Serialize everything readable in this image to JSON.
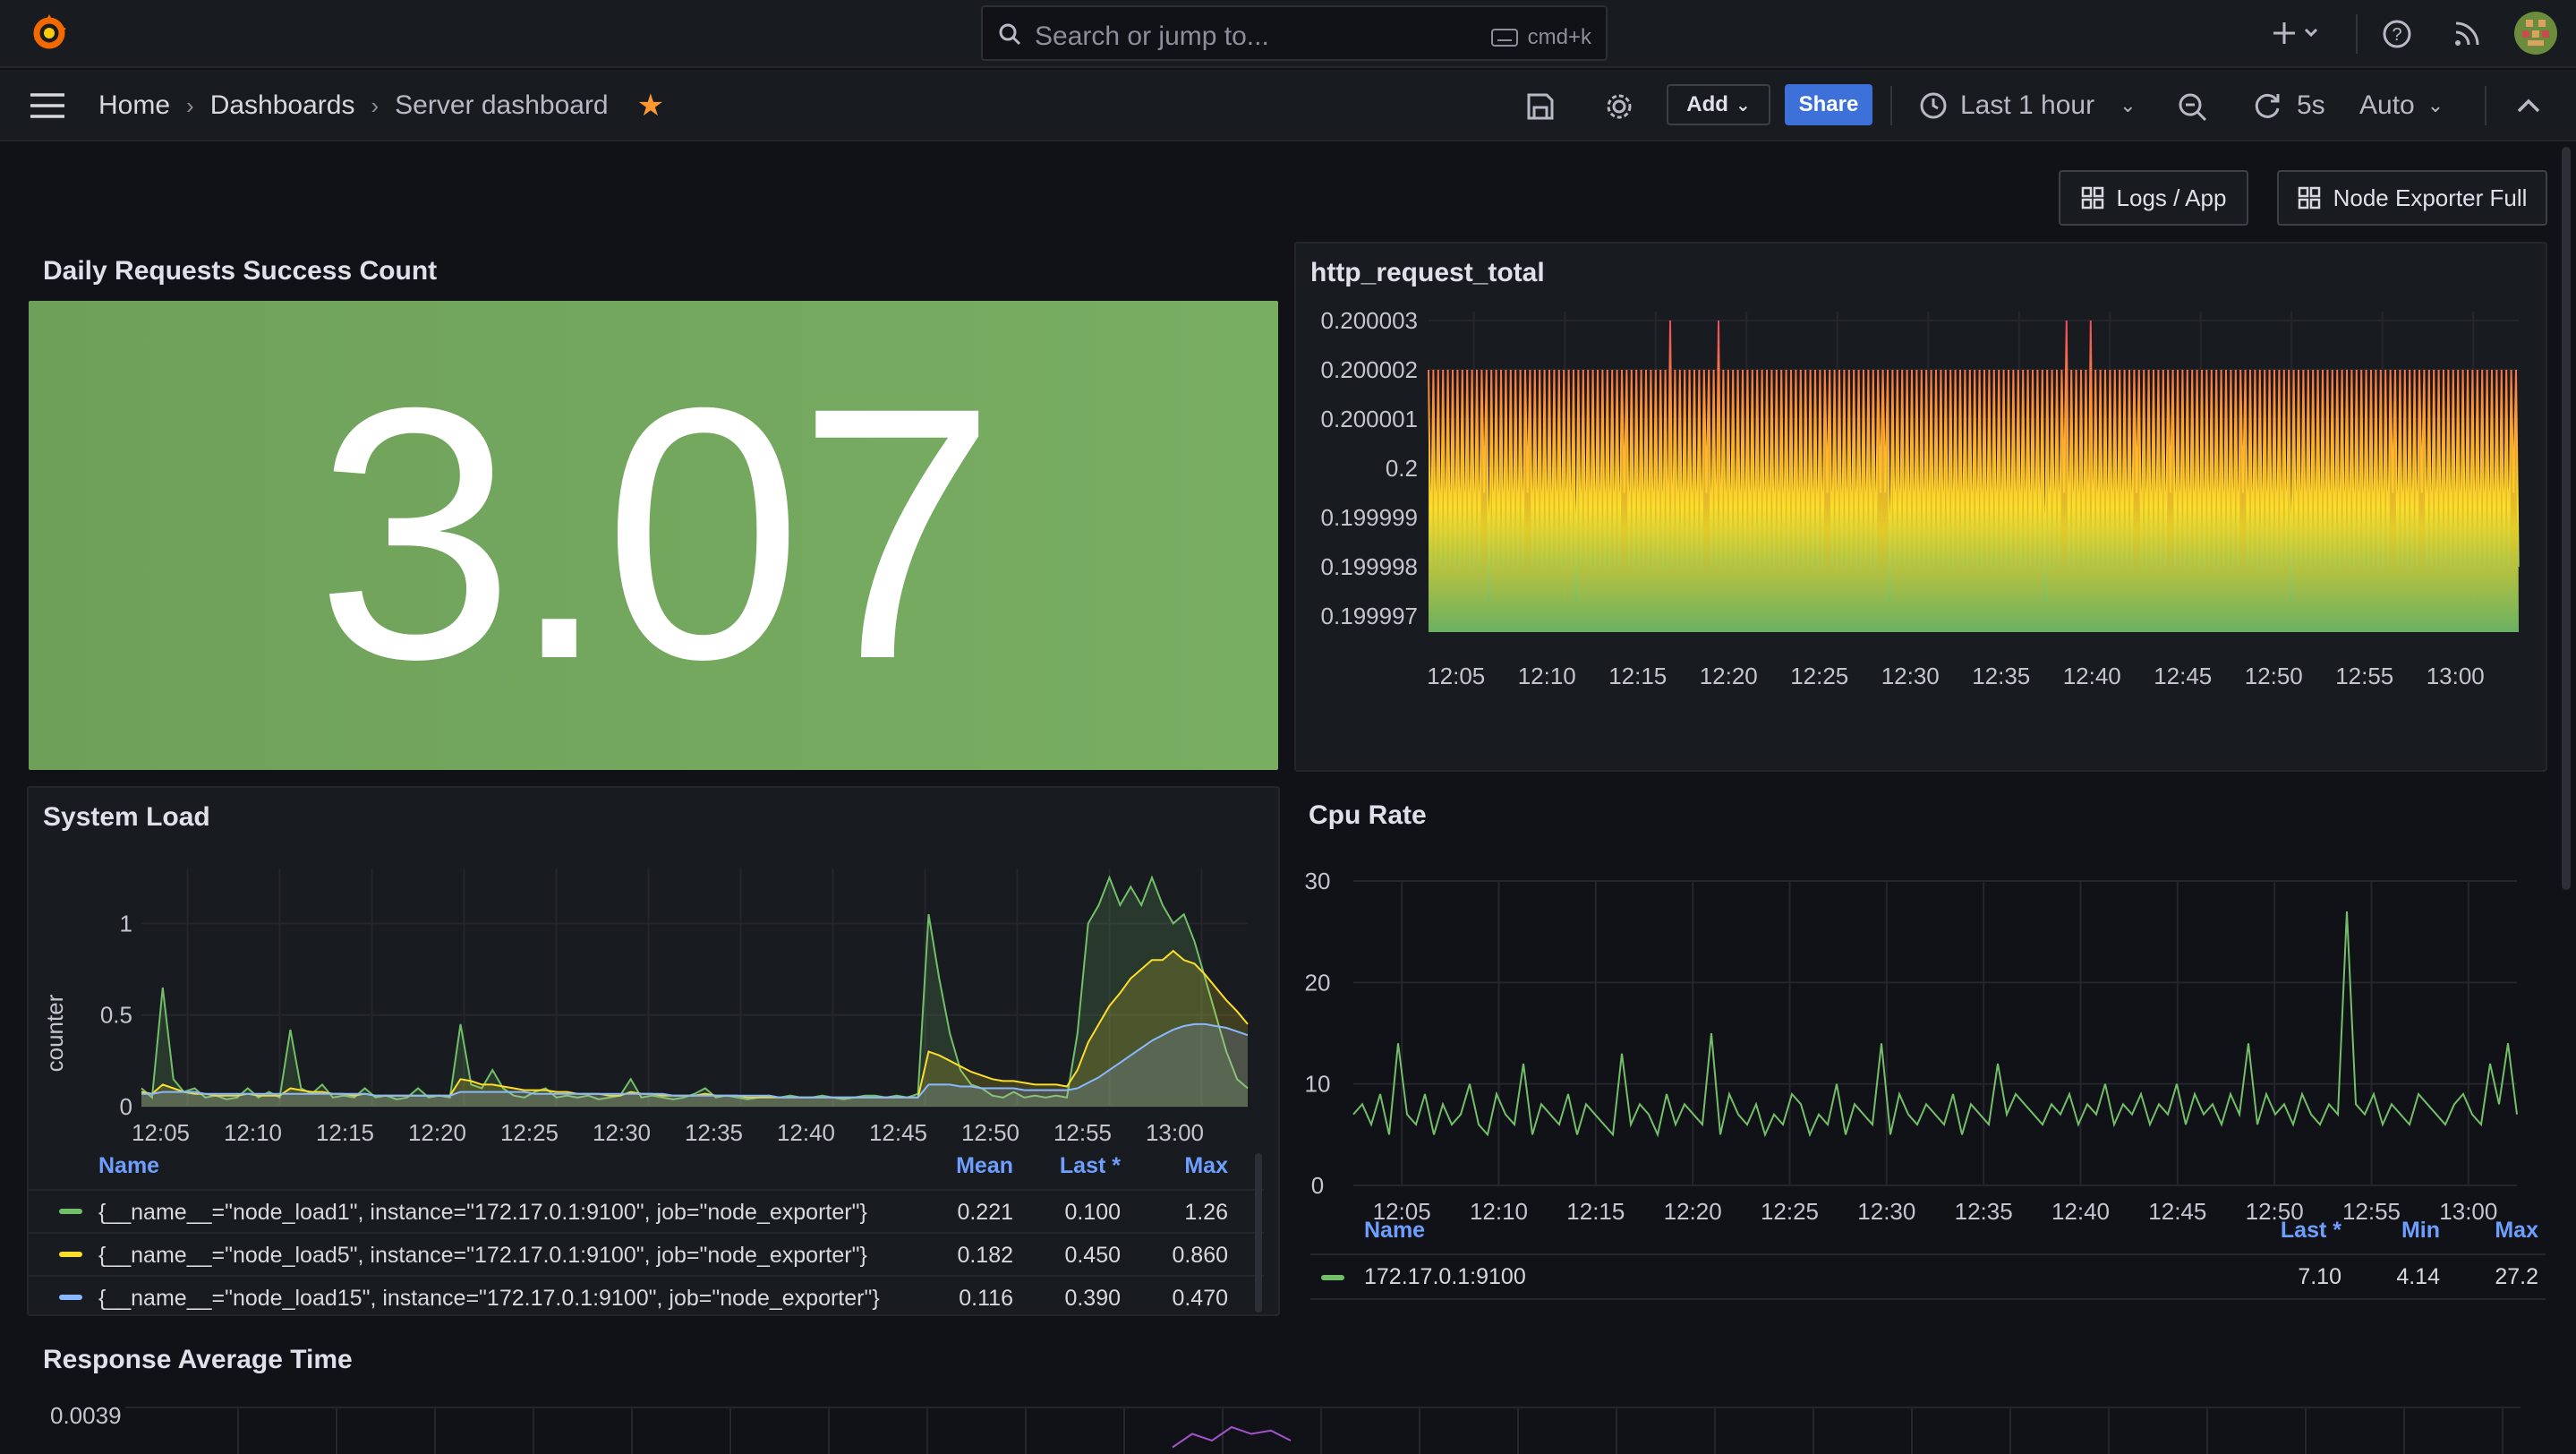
{
  "topbar": {
    "search_placeholder": "Search or jump to...",
    "search_shortcut": "cmd+k"
  },
  "breadcrumb": {
    "home": "Home",
    "dashboards": "Dashboards",
    "current": "Server dashboard"
  },
  "toolbar": {
    "add_label": "Add",
    "share_label": "Share",
    "time_range": "Last 1 hour",
    "refresh_interval": "5s",
    "auto_label": "Auto"
  },
  "links": {
    "logs_app": "Logs / App",
    "node_exporter": "Node Exporter Full"
  },
  "colors": {
    "accent": "#3d71d9",
    "stat_bg": "#73a35a",
    "series_green": "#73bf69",
    "series_yellow": "#fade2a",
    "series_blue": "#8ab8ff",
    "favorite_star": "#ff9830"
  },
  "panels": {
    "daily_requests": {
      "title": "Daily Requests Success Count",
      "value": "3.07"
    },
    "http_request_total": {
      "title": "http_request_total"
    },
    "system_load": {
      "title": "System Load",
      "legend_headers": {
        "name": "Name",
        "mean": "Mean",
        "last": "Last *",
        "max": "Max"
      },
      "rows": [
        {
          "name": "{__name__=\"node_load1\", instance=\"172.17.0.1:9100\", job=\"node_exporter\"}",
          "mean": "0.221",
          "last": "0.100",
          "max": "1.26"
        },
        {
          "name": "{__name__=\"node_load5\", instance=\"172.17.0.1:9100\", job=\"node_exporter\"}",
          "mean": "0.182",
          "last": "0.450",
          "max": "0.860"
        },
        {
          "name": "{__name__=\"node_load15\", instance=\"172.17.0.1:9100\", job=\"node_exporter\"}",
          "mean": "0.116",
          "last": "0.390",
          "max": "0.470"
        }
      ]
    },
    "cpu_rate": {
      "title": "Cpu Rate",
      "legend_headers": {
        "name": "Name",
        "last": "Last *",
        "min": "Min",
        "max": "Max"
      },
      "rows": [
        {
          "name": "172.17.0.1:9100",
          "last": "7.10",
          "min": "4.14",
          "max": "27.2"
        }
      ]
    },
    "response_avg": {
      "title": "Response Average Time",
      "y_top": "0.0039"
    }
  },
  "chart_data": [
    {
      "type": "line",
      "panel": "http_request_total",
      "x_ticks": [
        "12:05",
        "12:10",
        "12:15",
        "12:20",
        "12:25",
        "12:30",
        "12:35",
        "12:40",
        "12:45",
        "12:50",
        "12:55",
        "13:00"
      ],
      "y_ticks": [
        "0.200003",
        "0.200002",
        "0.200001",
        "0.2",
        "0.199999",
        "0.199998",
        "0.199997"
      ],
      "ylim": [
        0.199997,
        0.200003
      ],
      "gradient": [
        "#73bf69",
        "#fade2a",
        "#ff9830",
        "#f2495c"
      ],
      "series": [
        {
          "values": [
            0.200002,
            0.199998,
            0.200002,
            0.199998,
            0.200002,
            0.200003,
            0.199998,
            0.200002
          ]
        }
      ]
    },
    {
      "type": "area",
      "panel": "system_load",
      "ylabel": "counter",
      "x_ticks": [
        "12:05",
        "12:10",
        "12:15",
        "12:20",
        "12:25",
        "12:30",
        "12:35",
        "12:40",
        "12:45",
        "12:50",
        "12:55",
        "13:00"
      ],
      "y_ticks": [
        "0",
        "0.5",
        "1"
      ],
      "ylim": [
        0,
        1.3
      ],
      "series": [
        {
          "name": "node_load1",
          "color": "#73bf69",
          "values": [
            0.1,
            0.05,
            0.65,
            0.15,
            0.08,
            0.1,
            0.05,
            0.06,
            0.04,
            0.05,
            0.1,
            0.05,
            0.08,
            0.05,
            0.42,
            0.1,
            0.07,
            0.12,
            0.05,
            0.06,
            0.05,
            0.1,
            0.05,
            0.06,
            0.04,
            0.05,
            0.1,
            0.05,
            0.06,
            0.05,
            0.45,
            0.12,
            0.1,
            0.2,
            0.1,
            0.06,
            0.05,
            0.08,
            0.1,
            0.05,
            0.06,
            0.05,
            0.06,
            0.04,
            0.05,
            0.06,
            0.15,
            0.05,
            0.06,
            0.05,
            0.04,
            0.05,
            0.07,
            0.1,
            0.05,
            0.06,
            0.05,
            0.04,
            0.05,
            0.06,
            0.05,
            0.06,
            0.05,
            0.05,
            0.06,
            0.05,
            0.04,
            0.05,
            0.06,
            0.06,
            0.05,
            0.06,
            0.05,
            0.07,
            1.05,
            0.7,
            0.4,
            0.2,
            0.12,
            0.1,
            0.06,
            0.05,
            0.08,
            0.05,
            0.06,
            0.05,
            0.06,
            0.05,
            0.4,
            1.0,
            1.1,
            1.25,
            1.1,
            1.2,
            1.1,
            1.25,
            1.1,
            1.0,
            1.05,
            0.9,
            0.7,
            0.5,
            0.3,
            0.15,
            0.1
          ]
        },
        {
          "name": "node_load5",
          "color": "#fade2a",
          "values": [
            0.08,
            0.07,
            0.12,
            0.1,
            0.08,
            0.07,
            0.07,
            0.06,
            0.06,
            0.06,
            0.07,
            0.06,
            0.06,
            0.06,
            0.1,
            0.09,
            0.08,
            0.08,
            0.07,
            0.07,
            0.06,
            0.07,
            0.06,
            0.06,
            0.06,
            0.06,
            0.06,
            0.06,
            0.06,
            0.06,
            0.15,
            0.14,
            0.12,
            0.12,
            0.11,
            0.1,
            0.09,
            0.09,
            0.09,
            0.08,
            0.08,
            0.07,
            0.07,
            0.07,
            0.06,
            0.06,
            0.08,
            0.07,
            0.07,
            0.06,
            0.06,
            0.06,
            0.06,
            0.07,
            0.06,
            0.06,
            0.06,
            0.05,
            0.05,
            0.05,
            0.05,
            0.05,
            0.05,
            0.05,
            0.05,
            0.05,
            0.05,
            0.05,
            0.05,
            0.05,
            0.05,
            0.05,
            0.05,
            0.05,
            0.3,
            0.28,
            0.25,
            0.22,
            0.19,
            0.17,
            0.15,
            0.14,
            0.14,
            0.13,
            0.12,
            0.12,
            0.12,
            0.11,
            0.2,
            0.35,
            0.45,
            0.55,
            0.62,
            0.7,
            0.75,
            0.8,
            0.8,
            0.85,
            0.8,
            0.78,
            0.72,
            0.65,
            0.58,
            0.52,
            0.45
          ]
        },
        {
          "name": "node_load15",
          "color": "#8ab8ff",
          "values": [
            0.07,
            0.07,
            0.08,
            0.08,
            0.08,
            0.08,
            0.07,
            0.07,
            0.07,
            0.07,
            0.07,
            0.07,
            0.07,
            0.07,
            0.07,
            0.07,
            0.07,
            0.07,
            0.07,
            0.07,
            0.07,
            0.07,
            0.06,
            0.06,
            0.06,
            0.06,
            0.06,
            0.06,
            0.06,
            0.06,
            0.08,
            0.08,
            0.08,
            0.08,
            0.08,
            0.08,
            0.08,
            0.07,
            0.07,
            0.07,
            0.07,
            0.07,
            0.07,
            0.07,
            0.07,
            0.07,
            0.07,
            0.07,
            0.07,
            0.07,
            0.06,
            0.06,
            0.06,
            0.06,
            0.06,
            0.06,
            0.06,
            0.06,
            0.06,
            0.06,
            0.05,
            0.05,
            0.05,
            0.05,
            0.05,
            0.05,
            0.05,
            0.05,
            0.05,
            0.05,
            0.05,
            0.05,
            0.05,
            0.05,
            0.12,
            0.12,
            0.12,
            0.11,
            0.11,
            0.1,
            0.1,
            0.1,
            0.1,
            0.09,
            0.09,
            0.09,
            0.09,
            0.09,
            0.1,
            0.13,
            0.16,
            0.2,
            0.24,
            0.28,
            0.32,
            0.36,
            0.39,
            0.42,
            0.44,
            0.45,
            0.45,
            0.44,
            0.43,
            0.41,
            0.39
          ]
        }
      ]
    },
    {
      "type": "line",
      "panel": "cpu_rate",
      "x_ticks": [
        "12:05",
        "12:10",
        "12:15",
        "12:20",
        "12:25",
        "12:30",
        "12:35",
        "12:40",
        "12:45",
        "12:50",
        "12:55",
        "13:00"
      ],
      "y_ticks": [
        "0",
        "10",
        "20",
        "30"
      ],
      "ylim": [
        0,
        30
      ],
      "series": [
        {
          "name": "172.17.0.1:9100",
          "color": "#73bf69",
          "values": [
            7,
            8,
            6,
            9,
            5,
            14,
            7,
            6,
            9,
            5,
            8,
            6,
            7,
            10,
            6,
            5,
            9,
            7,
            6,
            12,
            5,
            8,
            7,
            6,
            9,
            5,
            8,
            7,
            6,
            5,
            13,
            6,
            8,
            7,
            5,
            9,
            6,
            8,
            7,
            6,
            15,
            5,
            9,
            7,
            6,
            8,
            5,
            7,
            6,
            9,
            8,
            5,
            7,
            6,
            10,
            5,
            8,
            7,
            6,
            14,
            5,
            9,
            7,
            6,
            8,
            7,
            6,
            9,
            5,
            8,
            7,
            6,
            12,
            7,
            9,
            8,
            7,
            6,
            8,
            7,
            9,
            6,
            8,
            7,
            10,
            6,
            8,
            7,
            9,
            6,
            8,
            7,
            10,
            6,
            9,
            7,
            8,
            6,
            9,
            7,
            14,
            6,
            9,
            7,
            8,
            6,
            9,
            7,
            6,
            8,
            7,
            27,
            8,
            7,
            9,
            6,
            8,
            7,
            6,
            9,
            8,
            7,
            6,
            8,
            9,
            7,
            6,
            12,
            8,
            14,
            7
          ]
        }
      ]
    },
    {
      "type": "line",
      "panel": "response_avg",
      "y_ticks": [
        "0.0039"
      ],
      "series": [
        {
          "color": "#a352cc",
          "values": [
            0.0036,
            0.0038,
            0.0037,
            0.0039,
            0.0038,
            0.00385,
            0.0037
          ]
        }
      ]
    }
  ]
}
